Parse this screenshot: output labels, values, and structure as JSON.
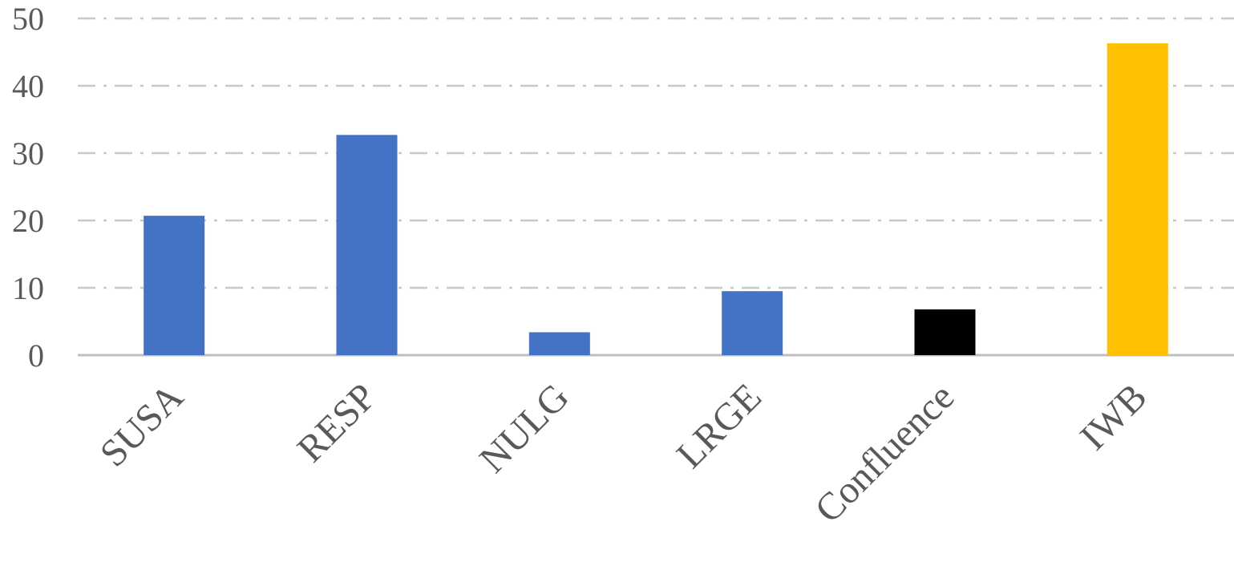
{
  "chart_data": {
    "type": "bar",
    "categories": [
      "SUSA",
      "RESP",
      "NULG",
      "LRGE",
      "Confluence",
      "IWB"
    ],
    "values": [
      20.7,
      32.7,
      3.4,
      9.5,
      6.8,
      46.3
    ],
    "colors": [
      "#4472c4",
      "#4472c4",
      "#4472c4",
      "#4472c4",
      "#000000",
      "#ffc000"
    ],
    "ylim": [
      0,
      50
    ],
    "yticks": [
      0,
      10,
      20,
      30,
      40,
      50
    ],
    "grid": true
  }
}
